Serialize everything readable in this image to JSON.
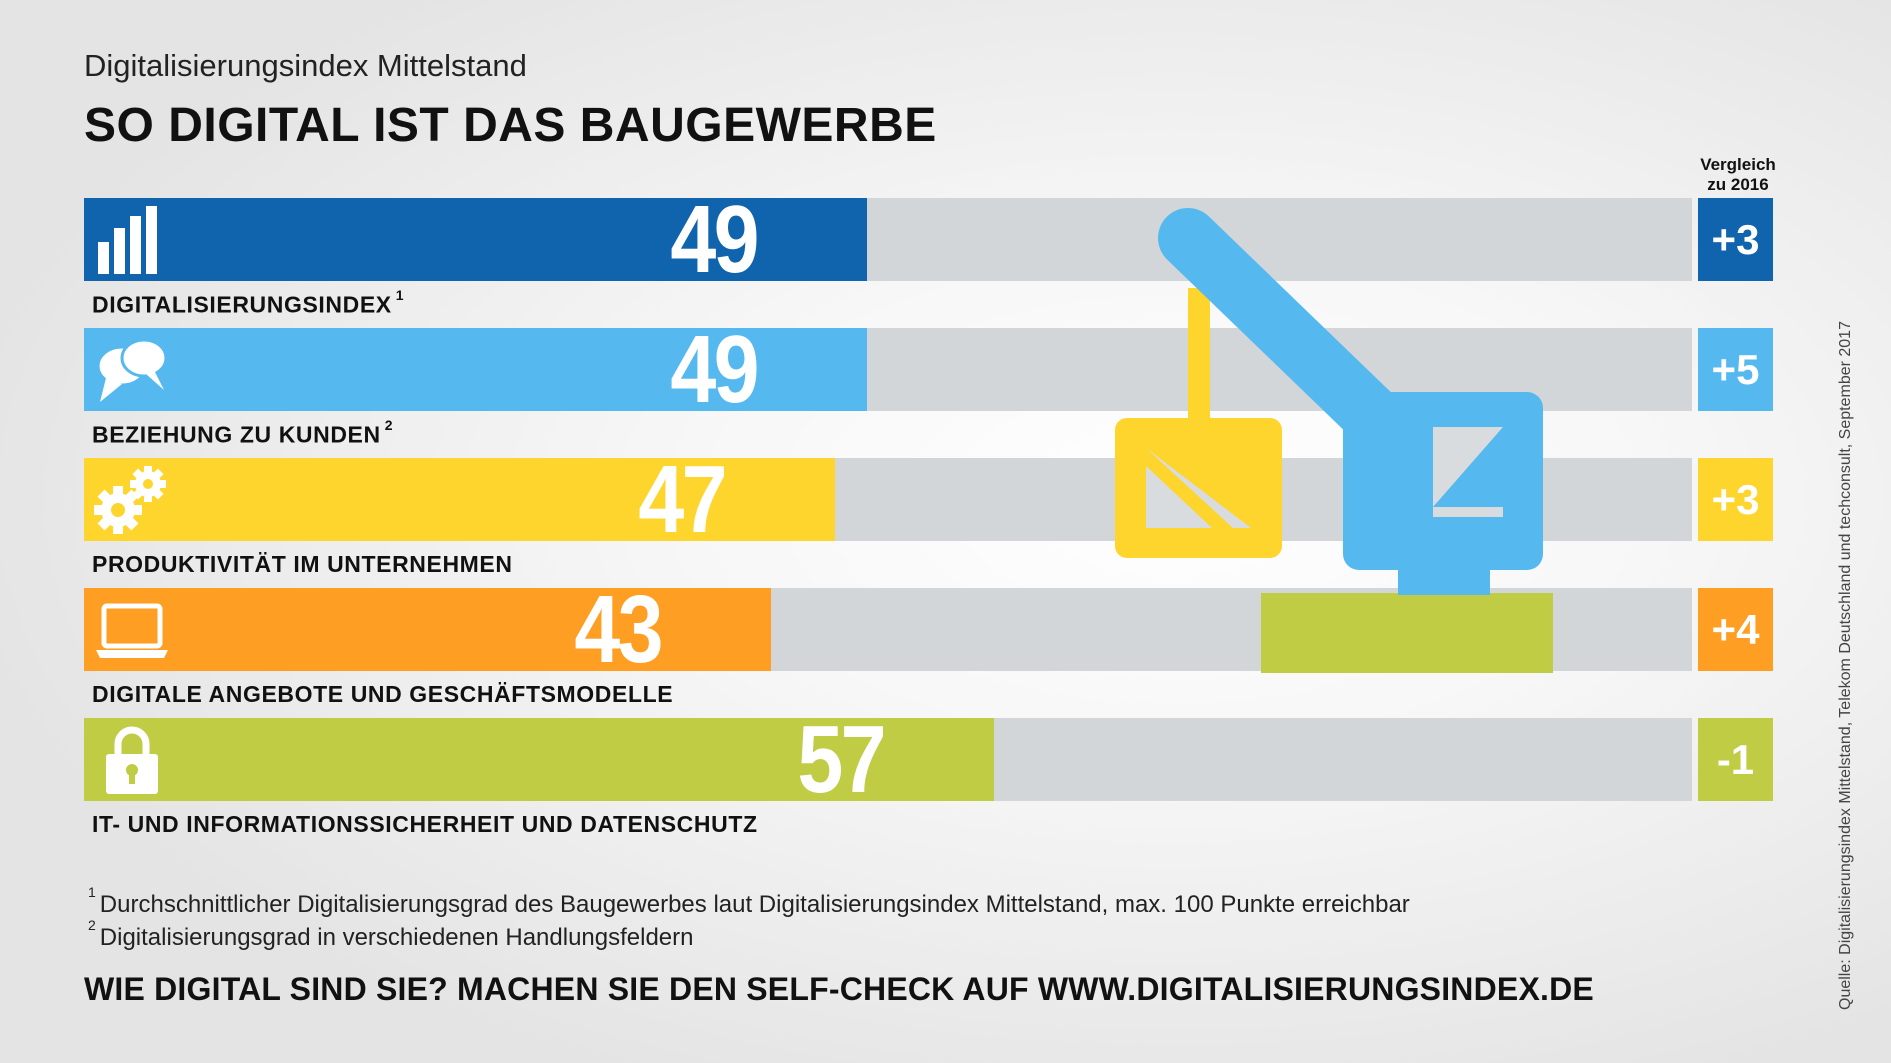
{
  "header": {
    "subtitle": "Digitalisierungsindex Mittelstand",
    "title": "SO DIGITAL IST DAS BAUGEWERBE",
    "compare_label": [
      "Vergleich",
      "zu 2016"
    ]
  },
  "chart_data": {
    "type": "bar",
    "orientation": "horizontal",
    "title": "SO DIGITAL IST DAS BAUGEWERBE",
    "subtitle": "Digitalisierungsindex Mittelstand",
    "xlim": [
      0,
      100
    ],
    "grid": false,
    "categories": [
      "DIGITALISIERUNGSINDEX",
      "BEZIEHUNG ZU KUNDEN",
      "PRODUKTIVITÄT IM UNTERNEHMEN",
      "DIGITALE ANGEBOTE UND GESCHÄFTSMODELLE",
      "IT- UND INFORMATIONSSICHERHEIT UND DATENSCHUTZ"
    ],
    "footnote_marks": [
      "1",
      "2",
      "",
      "",
      ""
    ],
    "values": [
      49,
      49,
      47,
      43,
      57
    ],
    "comparison_labels": [
      "+3",
      "+5",
      "+3",
      "+4",
      "-1"
    ],
    "colors": [
      "#1063ad",
      "#55b9f0",
      "#fed52c",
      "#fe9e22",
      "#bfcc44"
    ],
    "icons": [
      "bar-chart-icon",
      "speech-bubbles-icon",
      "gears-icon",
      "laptop-icon",
      "padlock-icon"
    ]
  },
  "footnotes": [
    {
      "mark": "1",
      "text": "Durchschnittlicher Digitalisierungsgrad des Baugewerbes laut Digitalisierungsindex Mittelstand, max. 100 Punkte erreichbar"
    },
    {
      "mark": "2",
      "text": "Digitalisierungsgrad in verschiedenen Handlungsfeldern"
    }
  ],
  "cta": "WIE DIGITAL SIND SIE? MACHEN SIE DEN SELF-CHECK AUF WWW.DIGITALISIERUNGSINDEX.DE",
  "source": "Quelle: Digitalisierungsindex Mittelstand, Telekom Deutschland und techconsult, September 2017",
  "illustration": {
    "icon": "crane-icon",
    "colors": [
      "#55b9f0",
      "#fed52c",
      "#bfcc44"
    ]
  }
}
